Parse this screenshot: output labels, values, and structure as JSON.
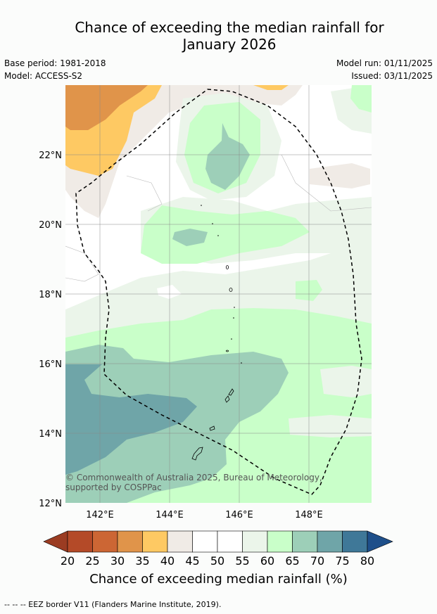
{
  "title_line1": "Chance of exceeding the median rainfall for",
  "title_line2": "January 2026",
  "meta": {
    "base_period": "Base period: 1981-2018",
    "model": "Model: ACCESS-S2",
    "model_run": "Model run: 01/11/2025",
    "issued": "Issued: 03/11/2025"
  },
  "axes": {
    "lat_labels": [
      "22°N",
      "20°N",
      "18°N",
      "16°N",
      "14°N",
      "12°N"
    ],
    "lon_labels": [
      "142°E",
      "144°E",
      "146°E",
      "148°E"
    ]
  },
  "copyright": "© Commonwealth of Australia 2025, Bureau of Meteorology, supported by COSPPac",
  "colorbar": {
    "title": "Chance of exceeding median rainfall (%)",
    "ticks": [
      "20",
      "25",
      "30",
      "35",
      "40",
      "45",
      "50",
      "55",
      "60",
      "65",
      "70",
      "75",
      "80"
    ],
    "colors": [
      "#9b3c22",
      "#b44a28",
      "#cc6634",
      "#e0944a",
      "#fec963",
      "#f0ebe6",
      "#ffffff",
      "#ffffff",
      "#ebf5ea",
      "#c9ffc9",
      "#9dcfb8",
      "#6fa5a8",
      "#3f7898",
      "#1e4f8a"
    ]
  },
  "footnote": "--  --  -- EEZ border V11 (Flanders Marine Institute, 2019)."
}
